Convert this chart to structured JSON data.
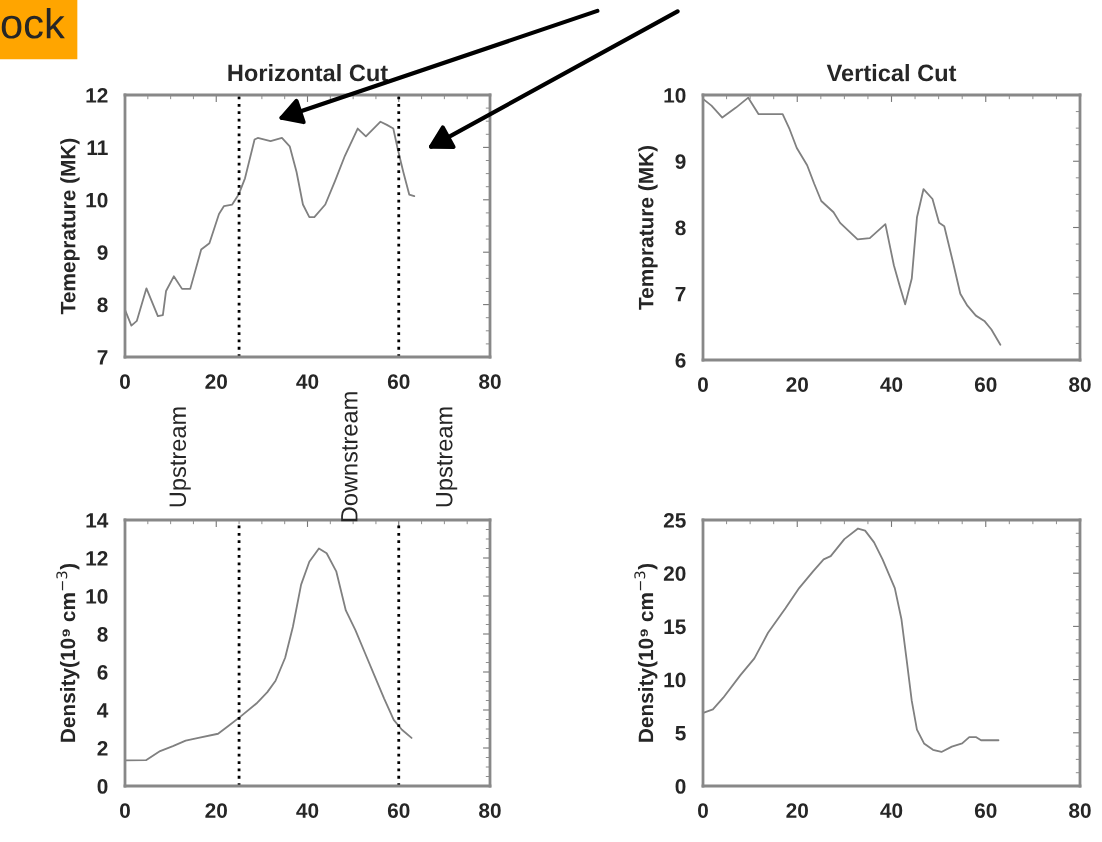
{
  "chart_data": [
    {
      "type": "line",
      "title": "Horizontal Cut",
      "ylabel": "Temeprature (MK)",
      "xlim": [
        0,
        80
      ],
      "xticks": [
        0,
        20,
        40,
        60,
        80
      ],
      "ylim": [
        7,
        12
      ],
      "yticks": [
        7,
        8,
        9,
        10,
        11,
        12
      ],
      "grid": false,
      "marker": "none",
      "line_style": "solid",
      "annotations": [
        "ock"
      ],
      "ref_lines": [
        {
          "axis": "x",
          "value": 25,
          "color": "#000000",
          "line_style": "dotted"
        },
        {
          "axis": "x",
          "value": 60,
          "color": "#000000",
          "line_style": "dotted"
        }
      ],
      "series": [
        {
          "color": "#808080",
          "x": [
            0,
            1.4,
            2.6,
            4.7,
            7.2,
            8.3,
            9,
            10.7,
            12.5,
            14.3,
            16.7,
            18.5,
            20.6,
            21.7,
            23.5,
            24.9,
            26.3,
            28.4,
            29.1,
            31.9,
            34.4,
            36.1,
            37.6,
            39,
            40.4,
            41.5,
            43.9,
            46,
            48.2,
            51,
            52.8,
            56,
            57.4,
            58.8,
            59.8,
            61,
            62.3,
            63.4
          ],
          "values": [
            7.9,
            7.6,
            7.69,
            8.31,
            7.78,
            7.8,
            8.26,
            8.54,
            8.3,
            8.3,
            9.05,
            9.17,
            9.73,
            9.88,
            9.91,
            10.1,
            10.41,
            11.15,
            11.18,
            11.12,
            11.18,
            11.02,
            10.53,
            9.91,
            9.67,
            9.67,
            9.91,
            10.35,
            10.84,
            11.36,
            11.21,
            11.49,
            11.43,
            11.36,
            10.96,
            10.53,
            10.1,
            10.07
          ]
        }
      ]
    },
    {
      "type": "line",
      "title": "Vertical Cut",
      "ylabel": "Temprature (MK)",
      "xlim": [
        0,
        80
      ],
      "xticks": [
        0,
        20,
        40,
        60,
        80
      ],
      "ylim": [
        6,
        10
      ],
      "yticks": [
        6,
        7,
        8,
        9,
        10
      ],
      "grid": false,
      "marker": "none",
      "line_style": "solid",
      "series": [
        {
          "color": "#808080",
          "x": [
            0,
            1.8,
            4.1,
            7,
            9.6,
            11.8,
            14,
            16.9,
            18.4,
            19.9,
            22.1,
            23.6,
            25.1,
            27.7,
            29.1,
            32.8,
            35.4,
            38.7,
            40.5,
            41.7,
            42.9,
            44.3,
            45.4,
            46.8,
            48.7,
            50.1,
            51.2,
            53.1,
            54.6,
            56.1,
            57.9,
            59.7,
            61.2,
            63.1
          ],
          "values": [
            9.94,
            9.84,
            9.66,
            9.81,
            9.96,
            9.71,
            9.71,
            9.71,
            9.48,
            9.2,
            8.94,
            8.66,
            8.4,
            8.23,
            8.07,
            7.82,
            7.84,
            8.05,
            7.43,
            7.13,
            6.84,
            7.23,
            8.15,
            8.58,
            8.43,
            8.07,
            8.02,
            7.46,
            7.0,
            6.82,
            6.67,
            6.59,
            6.46,
            6.23
          ]
        }
      ]
    },
    {
      "type": "line",
      "ylabel": "Density(10⁹ cm$^{−3}$)",
      "xlim": [
        0,
        80
      ],
      "xticks": [
        0,
        20,
        40,
        60,
        80
      ],
      "ylim": [
        0,
        14
      ],
      "yticks": [
        0,
        2,
        4,
        6,
        8,
        10,
        12,
        14
      ],
      "grid": false,
      "marker": "none",
      "line_style": "solid",
      "annotations": [
        "Upstream",
        "Downstream",
        "Upstream"
      ],
      "ref_lines": [
        {
          "axis": "x",
          "value": 25,
          "color": "#000000",
          "line_style": "dotted"
        },
        {
          "axis": "x",
          "value": 60,
          "color": "#000000",
          "line_style": "dotted"
        }
      ],
      "series": [
        {
          "color": "#808080",
          "x": [
            0,
            4.6,
            7.7,
            10.5,
            13.3,
            16.1,
            20.4,
            22.5,
            25.3,
            28.8,
            31.2,
            33,
            35.1,
            36.8,
            38.6,
            40.4,
            42.5,
            44.2,
            46.3,
            48.4,
            50.5,
            52.6,
            54.7,
            56.8,
            58.9,
            60.7,
            62.8
          ],
          "values": [
            1.35,
            1.36,
            1.84,
            2.1,
            2.39,
            2.53,
            2.75,
            3.13,
            3.65,
            4.34,
            4.94,
            5.54,
            6.75,
            8.38,
            10.6,
            11.8,
            12.5,
            12.25,
            11.3,
            9.24,
            8.2,
            7.0,
            5.8,
            4.6,
            3.48,
            2.96,
            2.53
          ]
        }
      ]
    },
    {
      "type": "line",
      "ylabel": "Density(10⁹ cm$^{−3}$)",
      "xlim": [
        0,
        80
      ],
      "xticks": [
        0,
        20,
        40,
        60,
        80
      ],
      "ylim": [
        0,
        25
      ],
      "yticks": [
        0,
        5,
        10,
        15,
        20,
        25
      ],
      "grid": false,
      "marker": "none",
      "line_style": "solid",
      "series": [
        {
          "color": "#808080",
          "x": [
            0.2,
            2.1,
            4.3,
            7.9,
            10.9,
            13.8,
            17.5,
            20.4,
            23.4,
            25.6,
            27.1,
            30,
            32.9,
            34.4,
            36.3,
            38.1,
            40.7,
            42.1,
            43.2,
            44.3,
            45.4,
            46.9,
            48.8,
            50.6,
            52.8,
            55,
            56.5,
            57.9,
            59,
            62.7
          ],
          "values": [
            6.9,
            7.2,
            8.3,
            10.4,
            12.0,
            14.4,
            16.7,
            18.6,
            20.2,
            21.3,
            21.6,
            23.2,
            24.2,
            24.0,
            22.9,
            21.3,
            18.6,
            15.7,
            11.9,
            8.0,
            5.3,
            4.0,
            3.4,
            3.2,
            3.7,
            4.0,
            4.6,
            4.6,
            4.3,
            4.3
          ]
        }
      ]
    }
  ]
}
